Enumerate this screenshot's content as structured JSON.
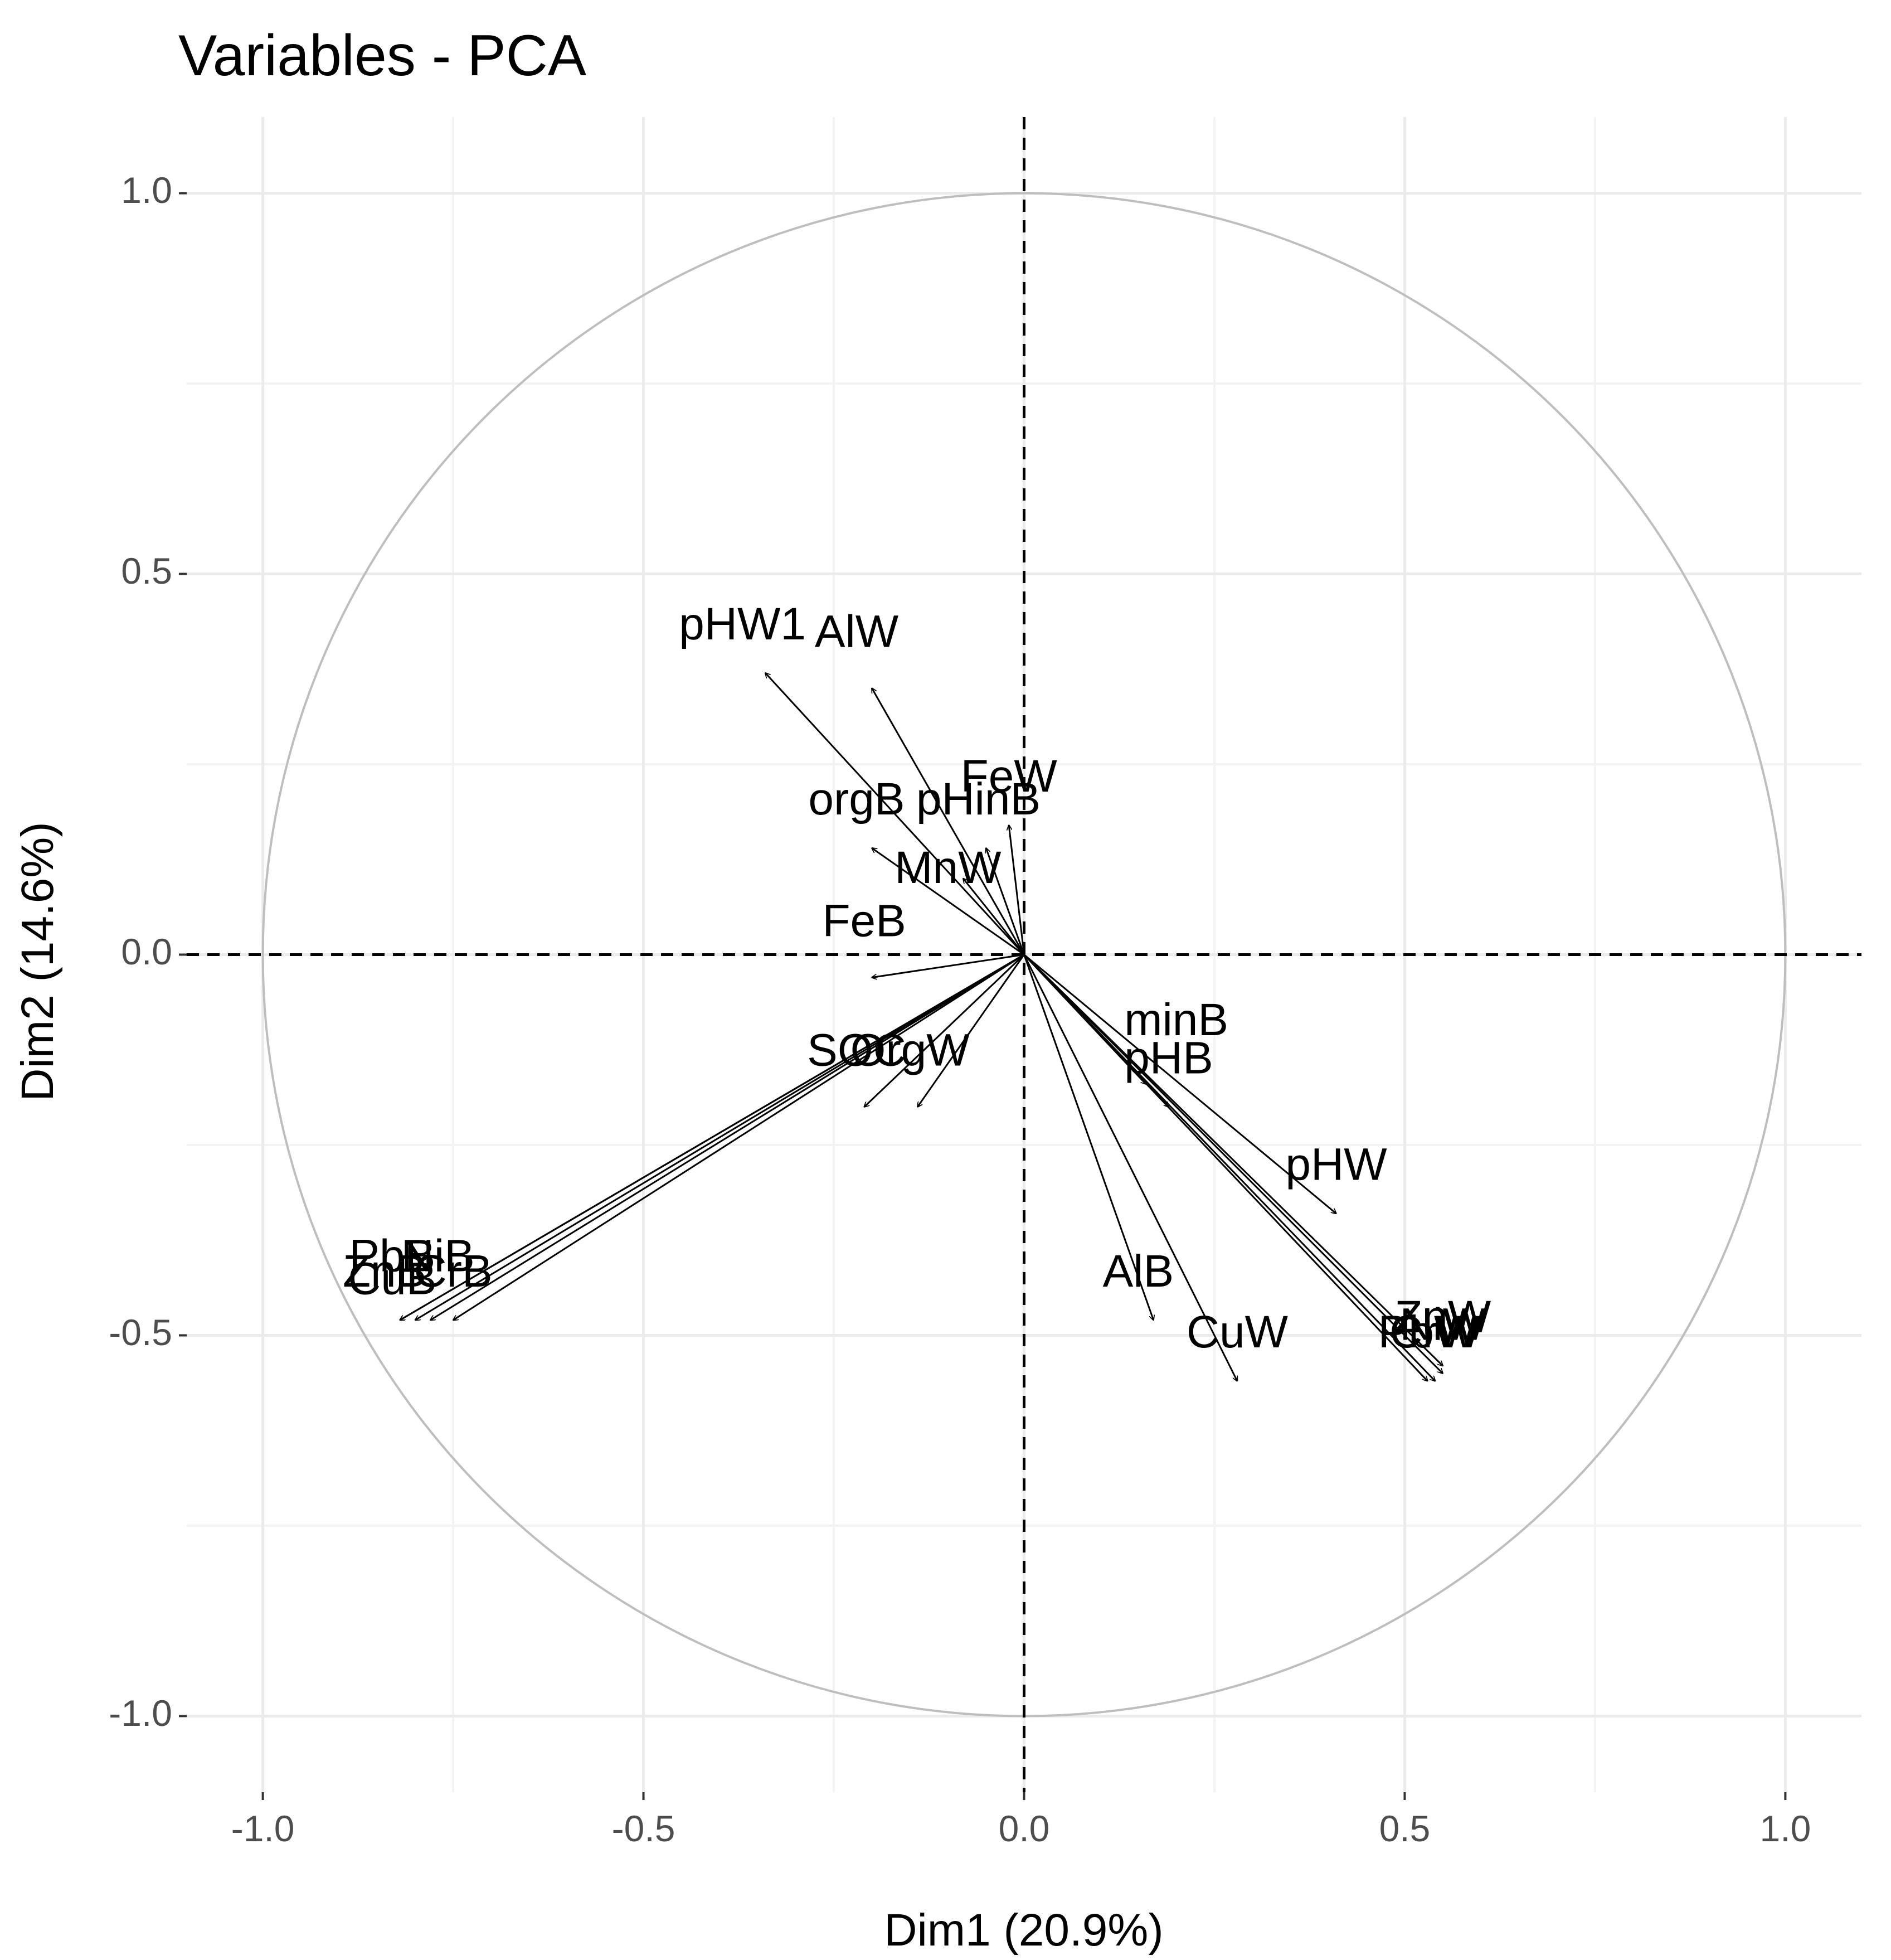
{
  "chart_data": {
    "type": "scatter",
    "subtype": "pca-correlation-circle",
    "title": "Variables - PCA",
    "xlabel": "Dim1 (20.9%)",
    "ylabel": "Dim2 (14.6%)",
    "xlim": [
      -1.1,
      1.1
    ],
    "ylim": [
      -1.1,
      1.1
    ],
    "x_ticks": [
      -1.0,
      -0.5,
      0.0,
      0.5,
      1.0
    ],
    "x_tick_labels": [
      "-1.0",
      "-0.5",
      "0.0",
      "0.5",
      "1.0"
    ],
    "y_ticks": [
      -1.0,
      -0.5,
      0.0,
      0.5,
      1.0
    ],
    "y_tick_labels": [
      "-1.0",
      "-0.5",
      "0.0",
      "0.5",
      "1.0"
    ],
    "grid": true,
    "unit_circle": true,
    "reference_lines": [
      "x=0 dashed",
      "y=0 dashed"
    ],
    "variables": [
      {
        "name": "pHW1",
        "x": -0.34,
        "y": 0.37,
        "label_x": -0.37,
        "label_y": 0.43
      },
      {
        "name": "AlW",
        "x": -0.2,
        "y": 0.35,
        "label_x": -0.22,
        "label_y": 0.42
      },
      {
        "name": "FeW",
        "x": -0.02,
        "y": 0.17,
        "label_x": -0.02,
        "label_y": 0.23
      },
      {
        "name": "pHinB",
        "x": -0.05,
        "y": 0.14,
        "label_x": -0.06,
        "label_y": 0.2
      },
      {
        "name": "orgB",
        "x": -0.2,
        "y": 0.14,
        "label_x": -0.22,
        "label_y": 0.2
      },
      {
        "name": "MnW",
        "x": -0.08,
        "y": 0.1,
        "label_x": -0.1,
        "label_y": 0.11
      },
      {
        "name": "FeB",
        "x": -0.2,
        "y": -0.03,
        "label_x": -0.21,
        "label_y": 0.04
      },
      {
        "name": "SOC",
        "x": -0.21,
        "y": -0.2,
        "label_x": -0.22,
        "label_y": -0.13
      },
      {
        "name": "OrgW",
        "x": -0.14,
        "y": -0.2,
        "label_x": -0.15,
        "label_y": -0.13
      },
      {
        "name": "PbB",
        "x": -0.82,
        "y": -0.48,
        "label_x": -0.83,
        "label_y": -0.4
      },
      {
        "name": "NiB",
        "x": -0.78,
        "y": -0.48,
        "label_x": -0.77,
        "label_y": -0.4
      },
      {
        "name": "ZnB",
        "x": -0.82,
        "y": -0.48,
        "label_x": -0.84,
        "label_y": -0.42
      },
      {
        "name": "CuB",
        "x": -0.8,
        "y": -0.48,
        "label_x": -0.83,
        "label_y": -0.43
      },
      {
        "name": "CrB",
        "x": -0.75,
        "y": -0.48,
        "label_x": -0.75,
        "label_y": -0.42
      },
      {
        "name": "minB",
        "x": 0.16,
        "y": -0.17,
        "label_x": 0.2,
        "label_y": -0.09
      },
      {
        "name": "pHB",
        "x": 0.19,
        "y": -0.2,
        "label_x": 0.19,
        "label_y": -0.14
      },
      {
        "name": "pHW",
        "x": 0.41,
        "y": -0.34,
        "label_x": 0.41,
        "label_y": -0.28
      },
      {
        "name": "AlB",
        "x": 0.17,
        "y": -0.48,
        "label_x": 0.15,
        "label_y": -0.42
      },
      {
        "name": "CuW",
        "x": 0.28,
        "y": -0.56,
        "label_x": 0.28,
        "label_y": -0.5
      },
      {
        "name": "ZnW",
        "x": 0.55,
        "y": -0.54,
        "label_x": 0.55,
        "label_y": -0.48
      },
      {
        "name": "PbW",
        "x": 0.53,
        "y": -0.56,
        "label_x": 0.53,
        "label_y": -0.5
      },
      {
        "name": "NiW",
        "x": 0.55,
        "y": -0.55,
        "label_x": 0.55,
        "label_y": -0.49
      },
      {
        "name": "CrW",
        "x": 0.54,
        "y": -0.56,
        "label_x": 0.54,
        "label_y": -0.5
      }
    ]
  }
}
